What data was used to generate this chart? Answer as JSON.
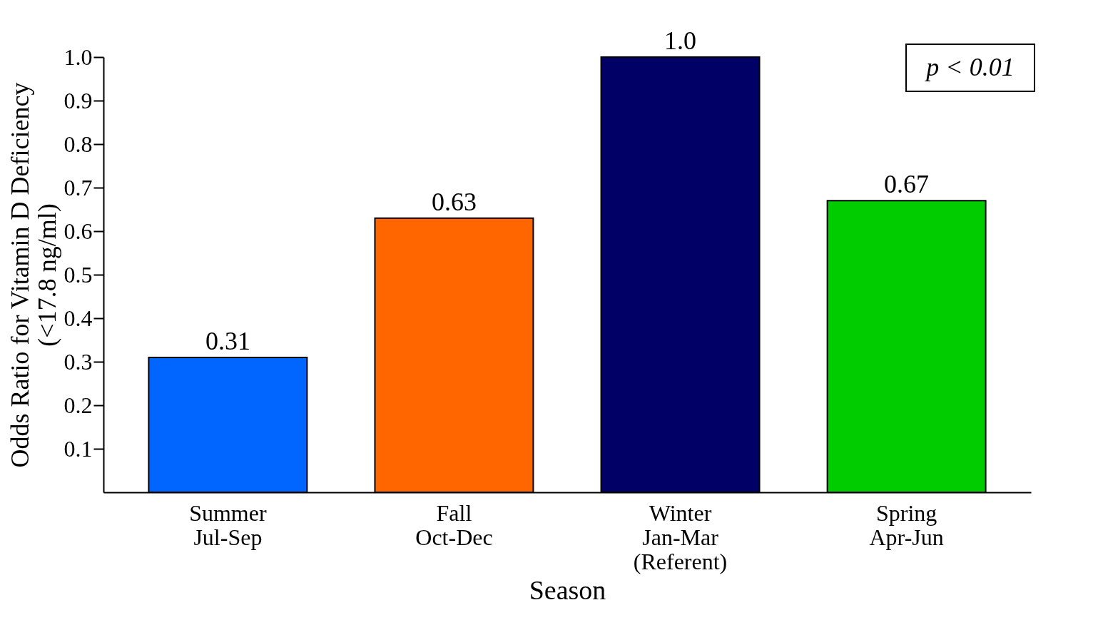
{
  "chart_data": {
    "type": "bar",
    "categories": [
      "Summer\nJul-Sep",
      "Fall\nOct-Dec",
      "Winter\nJan-Mar\n(Referent)",
      "Spring\nApr-Jun"
    ],
    "values": [
      0.31,
      0.63,
      1.0,
      0.67
    ],
    "colors": [
      "#0066ff",
      "#ff6600",
      "#000066",
      "#00cc00"
    ],
    "value_labels": [
      "0.31",
      "0.63",
      "1.0",
      "0.67"
    ],
    "xlabel": "Season",
    "ylabel": "Odds Ratio for Vitamin D Deficiency\n(<17.8 ng/ml)",
    "ylim": [
      0,
      1.0
    ],
    "yticks": [
      0.1,
      0.2,
      0.3,
      0.4,
      0.5,
      0.6,
      0.7,
      0.8,
      0.9,
      {
        "value": 1.0,
        "label": "1.0"
      }
    ],
    "annotations": [
      "p < 0.01"
    ],
    "grid": false
  }
}
